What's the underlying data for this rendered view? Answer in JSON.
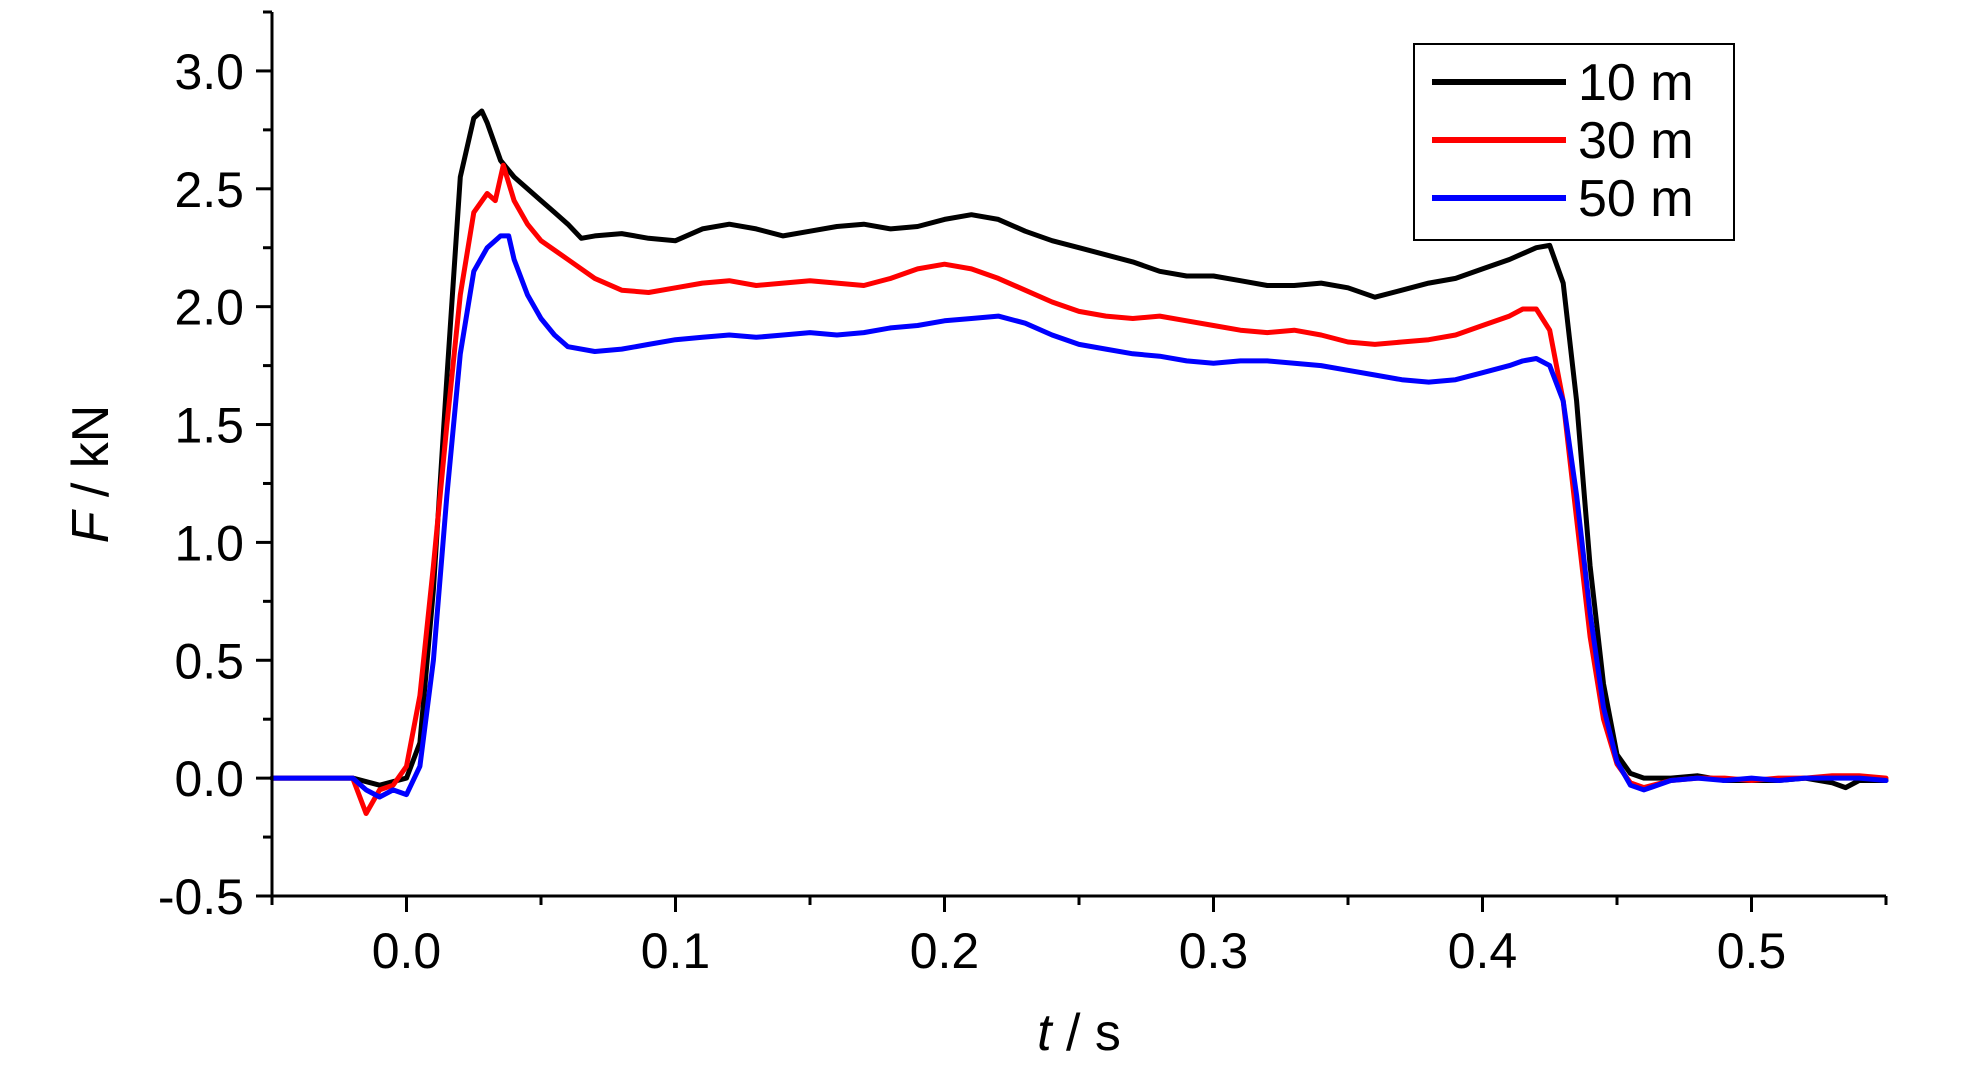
{
  "chart_data": {
    "type": "line",
    "title": "",
    "xlabel": {
      "italic": "t",
      "rest": " / s"
    },
    "ylabel": {
      "italic": "F",
      "rest": " / kN"
    },
    "xlim": [
      -0.05,
      0.55
    ],
    "ylim": [
      -0.5,
      3.25
    ],
    "x_ticks": [
      "0.0",
      "0.1",
      "0.2",
      "0.3",
      "0.4",
      "0.5"
    ],
    "y_ticks": [
      "-0.5",
      "0.0",
      "0.5",
      "1.0",
      "1.5",
      "2.0",
      "2.5",
      "3.0"
    ],
    "legend_position": "top-right",
    "grid": false,
    "series": [
      {
        "name": "10 m",
        "color": "#000000",
        "x": [
          -0.05,
          -0.02,
          -0.01,
          0.0,
          0.005,
          0.01,
          0.015,
          0.02,
          0.025,
          0.028,
          0.03,
          0.035,
          0.04,
          0.045,
          0.05,
          0.055,
          0.06,
          0.065,
          0.07,
          0.08,
          0.09,
          0.1,
          0.11,
          0.12,
          0.13,
          0.14,
          0.15,
          0.16,
          0.17,
          0.18,
          0.19,
          0.2,
          0.21,
          0.22,
          0.23,
          0.24,
          0.25,
          0.26,
          0.27,
          0.28,
          0.29,
          0.3,
          0.31,
          0.32,
          0.33,
          0.34,
          0.35,
          0.36,
          0.37,
          0.38,
          0.39,
          0.4,
          0.41,
          0.42,
          0.425,
          0.43,
          0.435,
          0.44,
          0.445,
          0.45,
          0.455,
          0.46,
          0.47,
          0.48,
          0.49,
          0.5,
          0.51,
          0.52,
          0.53,
          0.535,
          0.54,
          0.55
        ],
        "y": [
          0.0,
          0.0,
          -0.03,
          0.0,
          0.15,
          0.8,
          1.7,
          2.55,
          2.8,
          2.83,
          2.78,
          2.62,
          2.55,
          2.5,
          2.45,
          2.4,
          2.35,
          2.29,
          2.3,
          2.31,
          2.29,
          2.28,
          2.33,
          2.35,
          2.33,
          2.3,
          2.32,
          2.34,
          2.35,
          2.33,
          2.34,
          2.37,
          2.39,
          2.37,
          2.32,
          2.28,
          2.25,
          2.22,
          2.19,
          2.15,
          2.13,
          2.13,
          2.11,
          2.09,
          2.09,
          2.1,
          2.08,
          2.04,
          2.07,
          2.1,
          2.12,
          2.16,
          2.2,
          2.25,
          2.26,
          2.1,
          1.6,
          0.9,
          0.4,
          0.1,
          0.02,
          0.0,
          0.0,
          0.01,
          -0.01,
          -0.01,
          -0.01,
          0.0,
          -0.02,
          -0.04,
          -0.01,
          -0.01
        ]
      },
      {
        "name": "30 m",
        "color": "#ff0000",
        "x": [
          -0.05,
          -0.02,
          -0.015,
          -0.01,
          -0.005,
          0.0,
          0.005,
          0.01,
          0.015,
          0.02,
          0.025,
          0.03,
          0.033,
          0.036,
          0.04,
          0.045,
          0.05,
          0.06,
          0.07,
          0.08,
          0.09,
          0.1,
          0.11,
          0.12,
          0.13,
          0.14,
          0.15,
          0.16,
          0.17,
          0.18,
          0.19,
          0.2,
          0.21,
          0.22,
          0.23,
          0.24,
          0.25,
          0.26,
          0.27,
          0.28,
          0.29,
          0.3,
          0.31,
          0.32,
          0.33,
          0.34,
          0.35,
          0.36,
          0.37,
          0.38,
          0.39,
          0.4,
          0.41,
          0.415,
          0.42,
          0.425,
          0.43,
          0.435,
          0.44,
          0.445,
          0.45,
          0.455,
          0.46,
          0.47,
          0.48,
          0.49,
          0.5,
          0.51,
          0.52,
          0.53,
          0.54,
          0.55
        ],
        "y": [
          0.0,
          0.0,
          -0.15,
          -0.05,
          -0.03,
          0.05,
          0.35,
          0.9,
          1.5,
          2.05,
          2.4,
          2.48,
          2.45,
          2.6,
          2.45,
          2.35,
          2.28,
          2.2,
          2.12,
          2.07,
          2.06,
          2.08,
          2.1,
          2.11,
          2.09,
          2.1,
          2.11,
          2.1,
          2.09,
          2.12,
          2.16,
          2.18,
          2.16,
          2.12,
          2.07,
          2.02,
          1.98,
          1.96,
          1.95,
          1.96,
          1.94,
          1.92,
          1.9,
          1.89,
          1.9,
          1.88,
          1.85,
          1.84,
          1.85,
          1.86,
          1.88,
          1.92,
          1.96,
          1.99,
          1.99,
          1.9,
          1.6,
          1.1,
          0.6,
          0.25,
          0.06,
          -0.02,
          -0.04,
          -0.01,
          0.0,
          0.0,
          -0.01,
          0.0,
          0.0,
          0.01,
          0.01,
          0.0
        ]
      },
      {
        "name": "50 m",
        "color": "#0000ff",
        "x": [
          -0.05,
          -0.02,
          -0.015,
          -0.01,
          -0.005,
          0.0,
          0.005,
          0.01,
          0.015,
          0.02,
          0.025,
          0.03,
          0.035,
          0.038,
          0.04,
          0.045,
          0.05,
          0.055,
          0.06,
          0.07,
          0.08,
          0.09,
          0.1,
          0.11,
          0.12,
          0.13,
          0.14,
          0.15,
          0.16,
          0.17,
          0.18,
          0.19,
          0.2,
          0.21,
          0.22,
          0.23,
          0.24,
          0.25,
          0.26,
          0.27,
          0.28,
          0.29,
          0.3,
          0.31,
          0.32,
          0.33,
          0.34,
          0.35,
          0.36,
          0.37,
          0.38,
          0.39,
          0.4,
          0.41,
          0.415,
          0.42,
          0.425,
          0.43,
          0.435,
          0.44,
          0.445,
          0.45,
          0.455,
          0.46,
          0.47,
          0.48,
          0.49,
          0.5,
          0.51,
          0.52,
          0.53,
          0.54,
          0.55
        ],
        "y": [
          0.0,
          0.0,
          -0.05,
          -0.08,
          -0.05,
          -0.07,
          0.05,
          0.5,
          1.2,
          1.8,
          2.15,
          2.25,
          2.3,
          2.3,
          2.2,
          2.05,
          1.95,
          1.88,
          1.83,
          1.81,
          1.82,
          1.84,
          1.86,
          1.87,
          1.88,
          1.87,
          1.88,
          1.89,
          1.88,
          1.89,
          1.91,
          1.92,
          1.94,
          1.95,
          1.96,
          1.93,
          1.88,
          1.84,
          1.82,
          1.8,
          1.79,
          1.77,
          1.76,
          1.77,
          1.77,
          1.76,
          1.75,
          1.73,
          1.71,
          1.69,
          1.68,
          1.69,
          1.72,
          1.75,
          1.77,
          1.78,
          1.75,
          1.6,
          1.2,
          0.7,
          0.3,
          0.07,
          -0.03,
          -0.05,
          -0.01,
          0.0,
          -0.01,
          0.0,
          -0.01,
          0.0,
          0.0,
          0.0,
          -0.01
        ]
      }
    ]
  }
}
